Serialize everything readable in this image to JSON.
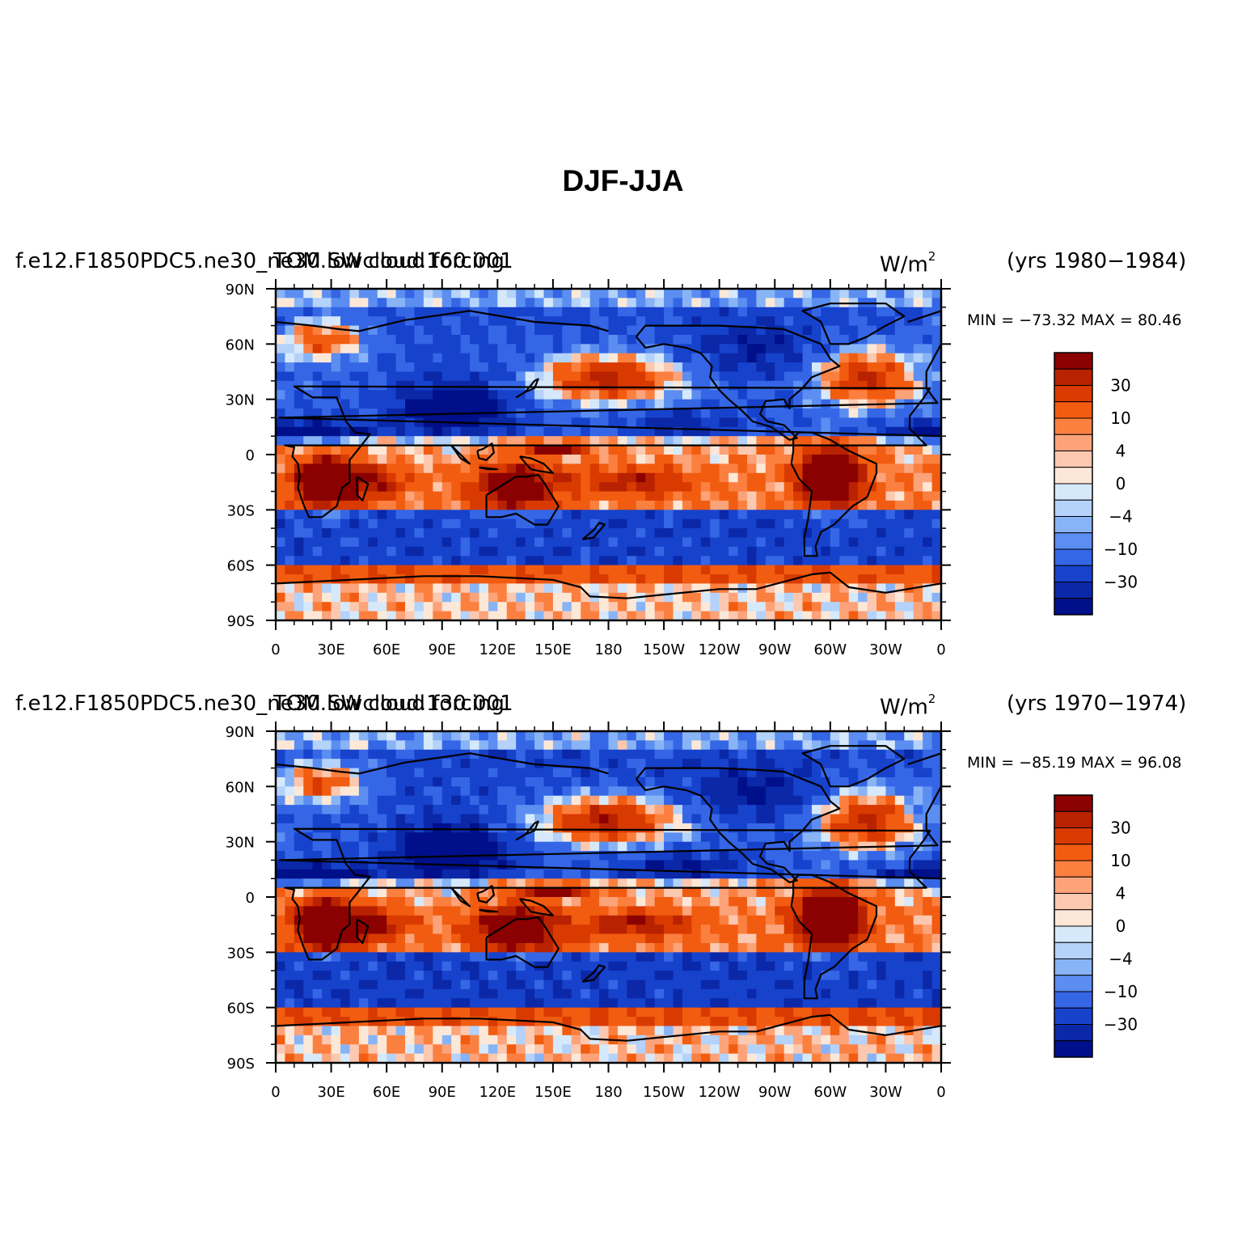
{
  "chart_data": {
    "type": "contour-map",
    "title": "DJF-JJA",
    "units": "W/m²",
    "units_base": "W/m",
    "units_exp": "2",
    "x_ticks": [
      "0",
      "30E",
      "60E",
      "90E",
      "120E",
      "150E",
      "180",
      "150W",
      "120W",
      "90W",
      "60W",
      "30W",
      "0"
    ],
    "y_ticks": [
      "90N",
      "60N",
      "30N",
      "0",
      "30S",
      "60S",
      "90S"
    ],
    "xlim": [
      0,
      360
    ],
    "ylim": [
      -90,
      90
    ],
    "contour_levels": [
      -40,
      -30,
      -20,
      -10,
      -6,
      -4,
      -2,
      0,
      2,
      4,
      6,
      10,
      20,
      30,
      40
    ],
    "colorbar_labels": [
      "30",
      "10",
      "4",
      "0",
      "−4",
      "−10",
      "−30"
    ],
    "colorbar_colors": [
      "#8b0000",
      "#b82200",
      "#d93a00",
      "#f25c10",
      "#fb8040",
      "#fca37a",
      "#fdc8b0",
      "#fde8d8",
      "#d6e9fb",
      "#b4d2fa",
      "#88b4f6",
      "#5b8ef0",
      "#3566e6",
      "#1742cc",
      "#0a28a8",
      "#000f8a"
    ],
    "panels": [
      {
        "left_title": "f.e12.F1850PDC5.ne30_ne30.lowcloud.160.001",
        "overlay_title": "TOM SW cloud forcing",
        "years": "(yrs 1980−1984)",
        "min_label": "MIN =",
        "min": "−73.32",
        "max_label": "MAX =",
        "max": "80.46"
      },
      {
        "left_title": "f.e12.F1850PDC5.ne30_ne30.lowcloud.130.001",
        "overlay_title": "TOM SW cloud forcing",
        "years": "(yrs 1970−1974)",
        "min_label": "MIN =",
        "min": "−85.19",
        "max_label": "MAX =",
        "max": "96.08"
      }
    ]
  }
}
